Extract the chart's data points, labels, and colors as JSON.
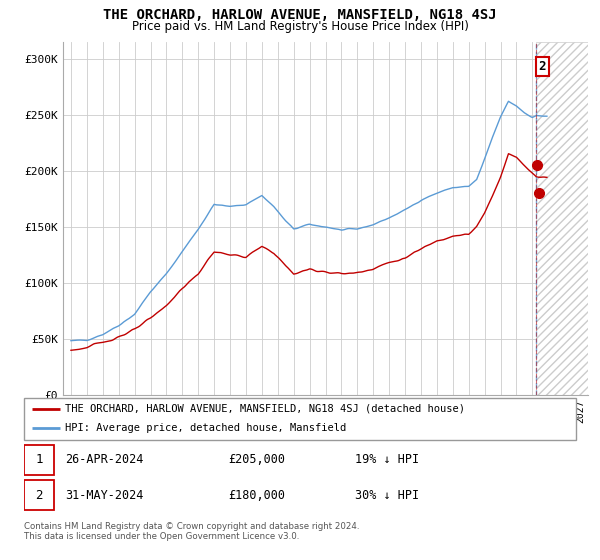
{
  "title": "THE ORCHARD, HARLOW AVENUE, MANSFIELD, NG18 4SJ",
  "subtitle": "Price paid vs. HM Land Registry's House Price Index (HPI)",
  "ylabel_ticks": [
    "£0",
    "£50K",
    "£100K",
    "£150K",
    "£200K",
    "£250K",
    "£300K"
  ],
  "ytick_vals": [
    0,
    50000,
    100000,
    150000,
    200000,
    250000,
    300000
  ],
  "ylim": [
    0,
    315000
  ],
  "xlim_start": 1994.5,
  "xlim_end": 2027.5,
  "hpi_color": "#5b9bd5",
  "price_color": "#c00000",
  "legend_label_price": "THE ORCHARD, HARLOW AVENUE, MANSFIELD, NG18 4SJ (detached house)",
  "legend_label_hpi": "HPI: Average price, detached house, Mansfield",
  "annotation1_date": 2024.3,
  "annotation1_price": 205000,
  "annotation2_date": 2024.42,
  "annotation2_price": 180000,
  "vline_x": 2024.25,
  "footer": "Contains HM Land Registry data © Crown copyright and database right 2024.\nThis data is licensed under the Open Government Licence v3.0."
}
